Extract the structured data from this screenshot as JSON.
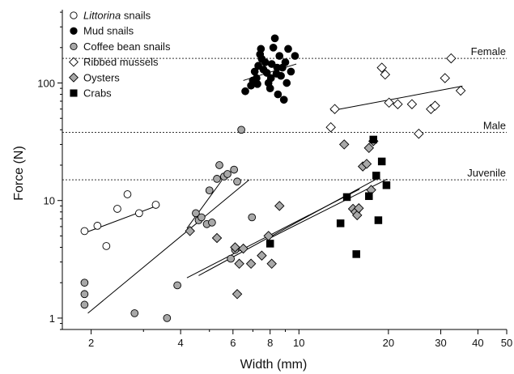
{
  "chart_data": {
    "type": "scatter",
    "x_scale": "log",
    "y_scale": "log",
    "xlim": [
      1.6,
      50
    ],
    "ylim": [
      0.8,
      420
    ],
    "xlabel": "Width (mm)",
    "ylabel": "Force (N)",
    "x_ticks": [
      2,
      4,
      6,
      8,
      10,
      20,
      30,
      40,
      50
    ],
    "y_ticks": [
      1,
      10,
      100
    ],
    "legend_position": "top-left",
    "reference_lines": [
      {
        "label": "Female",
        "y": 162
      },
      {
        "label": "Male",
        "y": 38
      },
      {
        "label": "Juvenile",
        "y": 15
      }
    ],
    "series": [
      {
        "name_prefix": "Littorina",
        "name_suffix": " snails",
        "marker": "circle",
        "fill": "#ffffff",
        "points": [
          [
            1.9,
            5.5
          ],
          [
            2.1,
            6.1
          ],
          [
            2.25,
            4.1
          ],
          [
            2.45,
            8.5
          ],
          [
            2.65,
            11.3
          ],
          [
            2.9,
            7.8
          ],
          [
            3.3,
            9.2
          ]
        ],
        "fit": [
          [
            1.9,
            5.3
          ],
          [
            3.4,
            9.2
          ]
        ]
      },
      {
        "name": "Mud snails",
        "marker": "circle",
        "fill": "#000000",
        "points": [
          [
            6.6,
            85
          ],
          [
            6.9,
            95
          ],
          [
            7.0,
            105
          ],
          [
            7.1,
            125
          ],
          [
            7.2,
            110
          ],
          [
            7.3,
            140
          ],
          [
            7.4,
            175
          ],
          [
            7.5,
            160
          ],
          [
            7.6,
            130
          ],
          [
            7.7,
            150
          ],
          [
            7.8,
            122
          ],
          [
            7.9,
            100
          ],
          [
            8.0,
            90
          ],
          [
            8.1,
            145
          ],
          [
            8.2,
            200
          ],
          [
            8.3,
            240
          ],
          [
            8.4,
            120
          ],
          [
            8.5,
            80
          ],
          [
            8.6,
            170
          ],
          [
            8.7,
            115
          ],
          [
            8.8,
            135
          ],
          [
            8.9,
            72
          ],
          [
            9.0,
            150
          ],
          [
            9.1,
            100
          ],
          [
            9.2,
            195
          ],
          [
            9.4,
            125
          ],
          [
            9.7,
            170
          ],
          [
            8.05,
            110
          ],
          [
            7.45,
            195
          ],
          [
            7.25,
            98
          ],
          [
            8.45,
            135
          ]
        ],
        "fit": [
          [
            6.5,
            105
          ],
          [
            9.8,
            145
          ]
        ]
      },
      {
        "name": "Coffee bean snails",
        "marker": "circle",
        "fill": "#a8a8a8",
        "points": [
          [
            1.9,
            2.0
          ],
          [
            1.9,
            1.6
          ],
          [
            1.9,
            1.3
          ],
          [
            2.8,
            1.1
          ],
          [
            3.6,
            1.0
          ],
          [
            3.9,
            1.9
          ],
          [
            4.5,
            7.8
          ],
          [
            4.6,
            6.8
          ],
          [
            4.7,
            7.2
          ],
          [
            4.9,
            6.3
          ],
          [
            5.0,
            12.2
          ],
          [
            5.1,
            6.5
          ],
          [
            5.3,
            15.3
          ],
          [
            5.4,
            20.0
          ],
          [
            5.6,
            16.0
          ],
          [
            5.75,
            16.8
          ],
          [
            5.9,
            3.2
          ],
          [
            6.05,
            18.3
          ],
          [
            6.2,
            14.5
          ],
          [
            6.4,
            40.0
          ],
          [
            6.95,
            7.2
          ],
          [
            6.1,
            3.8
          ]
        ],
        "fit": [
          [
            1.95,
            1.1
          ],
          [
            6.8,
            15.0
          ]
        ],
        "fit2": [
          [
            4.2,
            5.8
          ],
          [
            5.5,
            14.8
          ]
        ]
      },
      {
        "name": "Ribbed mussels",
        "marker": "diamond",
        "fill": "#ffffff",
        "points": [
          [
            12.8,
            42
          ],
          [
            13.2,
            60
          ],
          [
            19.0,
            135
          ],
          [
            19.5,
            118
          ],
          [
            20.1,
            68
          ],
          [
            21.5,
            66
          ],
          [
            24.0,
            66
          ],
          [
            25.3,
            37
          ],
          [
            27.8,
            60
          ],
          [
            28.7,
            64
          ],
          [
            31.0,
            110
          ],
          [
            32.5,
            162
          ],
          [
            35.0,
            86
          ]
        ],
        "fit": [
          [
            12.8,
            58
          ],
          [
            35.5,
            94
          ]
        ]
      },
      {
        "name": "Oysters",
        "marker": "diamond",
        "fill": "#a8a8a8",
        "points": [
          [
            4.3,
            5.5
          ],
          [
            5.3,
            4.8
          ],
          [
            6.1,
            4.0
          ],
          [
            6.3,
            2.9
          ],
          [
            6.5,
            3.9
          ],
          [
            6.9,
            2.9
          ],
          [
            6.2,
            1.6
          ],
          [
            7.5,
            3.4
          ],
          [
            7.9,
            5.0
          ],
          [
            8.1,
            2.9
          ],
          [
            8.6,
            9.0
          ],
          [
            14.2,
            30
          ],
          [
            15.2,
            8.5
          ],
          [
            15.5,
            8.0
          ],
          [
            15.7,
            7.5
          ],
          [
            15.9,
            8.6
          ],
          [
            16.4,
            19.5
          ],
          [
            16.9,
            20.5
          ],
          [
            17.2,
            28
          ],
          [
            17.5,
            12.3
          ],
          [
            17.8,
            32
          ]
        ],
        "fit": [
          [
            4.6,
            2.3
          ],
          [
            18.2,
            15.2
          ]
        ],
        "fit2": [
          [
            4.2,
            2.2
          ],
          [
            16.0,
            12.5
          ]
        ]
      },
      {
        "name": "Crabs",
        "marker": "square",
        "fill": "#000000",
        "points": [
          [
            8.0,
            4.3
          ],
          [
            13.8,
            6.4
          ],
          [
            14.5,
            10.7
          ],
          [
            15.6,
            3.5
          ],
          [
            17.2,
            10.9
          ],
          [
            17.8,
            33
          ],
          [
            18.2,
            16.3
          ],
          [
            18.5,
            6.8
          ],
          [
            19.0,
            21.5
          ],
          [
            19.7,
            13.5
          ]
        ],
        "fit": [
          [
            8.0,
            4.8
          ],
          [
            19.8,
            15.2
          ]
        ]
      }
    ]
  }
}
